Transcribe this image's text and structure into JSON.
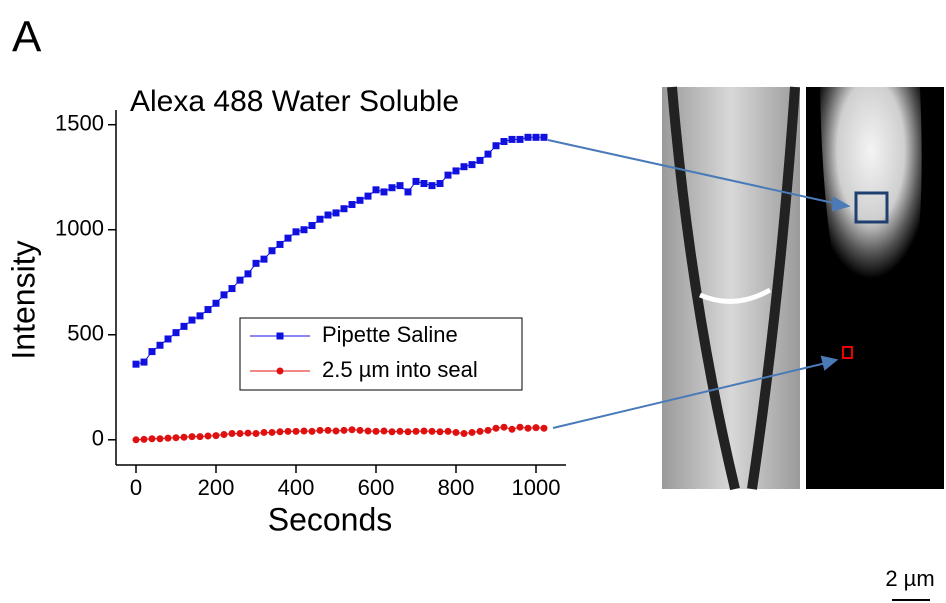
{
  "panel_label": "A",
  "scale_bar_label": "2 µm",
  "chart_data": {
    "type": "line",
    "title": "Alexa 488 Water Soluble",
    "x_label": "Seconds",
    "y_label": "Intensity",
    "x": [
      0,
      20,
      40,
      60,
      80,
      100,
      120,
      140,
      160,
      180,
      200,
      220,
      240,
      260,
      280,
      300,
      320,
      340,
      360,
      380,
      400,
      420,
      440,
      460,
      480,
      500,
      520,
      540,
      560,
      580,
      600,
      620,
      640,
      660,
      680,
      700,
      720,
      740,
      760,
      780,
      800,
      820,
      840,
      860,
      880,
      900,
      920,
      940,
      960,
      980,
      1000,
      1020
    ],
    "series": [
      {
        "name": "Pipette Saline",
        "color": "#1010e0",
        "marker": "square",
        "values": [
          360,
          370,
          420,
          450,
          480,
          510,
          540,
          570,
          590,
          620,
          650,
          690,
          720,
          760,
          790,
          840,
          860,
          900,
          930,
          960,
          990,
          1000,
          1020,
          1050,
          1070,
          1080,
          1100,
          1120,
          1140,
          1160,
          1190,
          1180,
          1200,
          1210,
          1180,
          1230,
          1220,
          1210,
          1220,
          1260,
          1280,
          1300,
          1310,
          1330,
          1360,
          1400,
          1420,
          1430,
          1430,
          1440,
          1440,
          1440
        ]
      },
      {
        "name": "2.5 µm into seal",
        "color": "#e01010",
        "marker": "circle",
        "values": [
          0,
          2,
          5,
          5,
          8,
          10,
          12,
          15,
          15,
          18,
          20,
          25,
          30,
          30,
          32,
          30,
          35,
          35,
          38,
          40,
          40,
          42,
          40,
          45,
          45,
          42,
          45,
          48,
          45,
          42,
          40,
          42,
          38,
          40,
          38,
          40,
          42,
          40,
          38,
          40,
          35,
          30,
          35,
          40,
          45,
          55,
          60,
          50,
          60,
          55,
          58,
          55
        ]
      }
    ],
    "xlim": [
      -50,
      1075
    ],
    "ylim": [
      -120,
      1570
    ],
    "xticks": [
      0,
      200,
      400,
      600,
      800,
      1000
    ],
    "yticks": [
      0,
      500,
      1000,
      1500
    ],
    "legend": "center"
  }
}
